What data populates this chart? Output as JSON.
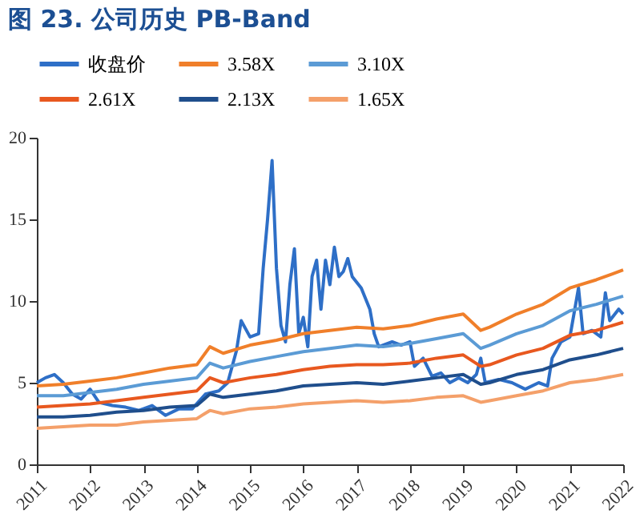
{
  "chart_data": {
    "type": "line",
    "title": "图 23. 公司历史 PB-Band",
    "xlim": [
      "2011",
      "2022"
    ],
    "xticks": [
      "2011",
      "2012",
      "2013",
      "2014",
      "2015",
      "2016",
      "2017",
      "2018",
      "2019",
      "2020",
      "2021",
      "2022"
    ],
    "ylim": [
      0,
      20
    ],
    "yticks": [
      0,
      5,
      10,
      15,
      20
    ],
    "grid": false,
    "legend": "top",
    "marker": "none",
    "line_style": "solid",
    "series": [
      {
        "name": "收盘价",
        "color": "#2e6fc7",
        "x": [
          "2011-01",
          "2011-03",
          "2011-05",
          "2011-07",
          "2011-09",
          "2011-11",
          "2012-01",
          "2012-03",
          "2012-06",
          "2012-09",
          "2012-12",
          "2013-03",
          "2013-06",
          "2013-09",
          "2013-12",
          "2014-03",
          "2014-06",
          "2014-08",
          "2014-10",
          "2014-11",
          "2015-01",
          "2015-03",
          "2015-04",
          "2015-05",
          "2015-06",
          "2015-07",
          "2015-08",
          "2015-09",
          "2015-10",
          "2015-11",
          "2015-12",
          "2016-01",
          "2016-02",
          "2016-03",
          "2016-04",
          "2016-05",
          "2016-06",
          "2016-07",
          "2016-08",
          "2016-09",
          "2016-10",
          "2016-11",
          "2016-12",
          "2017-02",
          "2017-04",
          "2017-05",
          "2017-06",
          "2017-09",
          "2017-11",
          "2018-01",
          "2018-02",
          "2018-04",
          "2018-06",
          "2018-08",
          "2018-10",
          "2018-12",
          "2019-02",
          "2019-04",
          "2019-05",
          "2019-06",
          "2019-09",
          "2019-12",
          "2020-03",
          "2020-06",
          "2020-08",
          "2020-09",
          "2020-11",
          "2021-01",
          "2021-03",
          "2021-04",
          "2021-06",
          "2021-08",
          "2021-09",
          "2021-10",
          "2021-12",
          "2022-01"
        ],
        "values": [
          5.0,
          5.3,
          5.5,
          5.0,
          4.3,
          4.0,
          4.6,
          3.8,
          3.6,
          3.5,
          3.3,
          3.6,
          3.0,
          3.4,
          3.4,
          4.3,
          4.5,
          5.0,
          7.0,
          8.8,
          7.8,
          8.0,
          12,
          15,
          18.6,
          12,
          8.5,
          7.5,
          11,
          13.2,
          8,
          9,
          7.2,
          11.5,
          12.5,
          9.5,
          12.5,
          11,
          13.3,
          11.5,
          11.8,
          12.6,
          11.5,
          10.8,
          9.5,
          8.0,
          7.2,
          7.5,
          7.3,
          7.5,
          6.0,
          6.5,
          5.4,
          5.6,
          5.0,
          5.3,
          5.0,
          5.5,
          6.5,
          5.0,
          5.2,
          5.0,
          4.6,
          5.0,
          4.8,
          6.5,
          7.5,
          7.8,
          10.8,
          8.0,
          8.2,
          7.8,
          10.5,
          8.8,
          9.5,
          9.2
        ]
      },
      {
        "name": "3.58X",
        "color": "#f07f2a",
        "x": [
          "2011-01",
          "2011-07",
          "2012-01",
          "2012-07",
          "2013-01",
          "2013-07",
          "2014-01",
          "2014-04",
          "2014-07",
          "2015-01",
          "2015-07",
          "2016-01",
          "2016-07",
          "2017-01",
          "2017-07",
          "2018-01",
          "2018-07",
          "2019-01",
          "2019-05",
          "2019-07",
          "2020-01",
          "2020-07",
          "2021-01",
          "2021-07",
          "2022-01"
        ],
        "values": [
          4.8,
          4.9,
          5.1,
          5.3,
          5.6,
          5.9,
          6.1,
          7.2,
          6.8,
          7.3,
          7.6,
          8.0,
          8.2,
          8.4,
          8.3,
          8.5,
          8.9,
          9.2,
          8.2,
          8.4,
          9.2,
          9.8,
          10.8,
          11.3,
          11.9
        ]
      },
      {
        "name": "3.10X",
        "color": "#5b9bd5",
        "x": [
          "2011-01",
          "2011-07",
          "2012-01",
          "2012-07",
          "2013-01",
          "2013-07",
          "2014-01",
          "2014-04",
          "2014-07",
          "2015-01",
          "2015-07",
          "2016-01",
          "2016-07",
          "2017-01",
          "2017-07",
          "2018-01",
          "2018-07",
          "2019-01",
          "2019-05",
          "2019-07",
          "2020-01",
          "2020-07",
          "2021-01",
          "2021-07",
          "2022-01"
        ],
        "values": [
          4.2,
          4.2,
          4.4,
          4.6,
          4.9,
          5.1,
          5.3,
          6.2,
          5.9,
          6.3,
          6.6,
          6.9,
          7.1,
          7.3,
          7.2,
          7.4,
          7.7,
          8.0,
          7.1,
          7.3,
          8.0,
          8.5,
          9.4,
          9.8,
          10.3
        ]
      },
      {
        "name": "2.61X",
        "color": "#e8581f",
        "x": [
          "2011-01",
          "2011-07",
          "2012-01",
          "2012-07",
          "2013-01",
          "2013-07",
          "2014-01",
          "2014-04",
          "2014-07",
          "2015-01",
          "2015-07",
          "2016-01",
          "2016-07",
          "2017-01",
          "2017-07",
          "2018-01",
          "2018-07",
          "2019-01",
          "2019-05",
          "2019-07",
          "2020-01",
          "2020-07",
          "2021-01",
          "2021-07",
          "2022-01"
        ],
        "values": [
          3.5,
          3.6,
          3.7,
          3.9,
          4.1,
          4.3,
          4.5,
          5.3,
          5.0,
          5.3,
          5.5,
          5.8,
          6.0,
          6.1,
          6.1,
          6.2,
          6.5,
          6.7,
          6.0,
          6.1,
          6.7,
          7.1,
          7.9,
          8.2,
          8.7
        ]
      },
      {
        "name": "2.13X",
        "color": "#1f4e8c",
        "x": [
          "2011-01",
          "2011-07",
          "2012-01",
          "2012-07",
          "2013-01",
          "2013-07",
          "2014-01",
          "2014-04",
          "2014-07",
          "2015-01",
          "2015-07",
          "2016-01",
          "2016-07",
          "2017-01",
          "2017-07",
          "2018-01",
          "2018-07",
          "2019-01",
          "2019-05",
          "2019-07",
          "2020-01",
          "2020-07",
          "2021-01",
          "2021-07",
          "2022-01"
        ],
        "values": [
          2.9,
          2.9,
          3.0,
          3.2,
          3.3,
          3.5,
          3.6,
          4.3,
          4.1,
          4.3,
          4.5,
          4.8,
          4.9,
          5.0,
          4.9,
          5.1,
          5.3,
          5.5,
          4.9,
          5.0,
          5.5,
          5.8,
          6.4,
          6.7,
          7.1
        ]
      },
      {
        "name": "1.65X",
        "color": "#f4a06a",
        "x": [
          "2011-01",
          "2011-07",
          "2012-01",
          "2012-07",
          "2013-01",
          "2013-07",
          "2014-01",
          "2014-04",
          "2014-07",
          "2015-01",
          "2015-07",
          "2016-01",
          "2016-07",
          "2017-01",
          "2017-07",
          "2018-01",
          "2018-07",
          "2019-01",
          "2019-05",
          "2019-07",
          "2020-01",
          "2020-07",
          "2021-01",
          "2021-07",
          "2022-01"
        ],
        "values": [
          2.2,
          2.3,
          2.4,
          2.4,
          2.6,
          2.7,
          2.8,
          3.3,
          3.1,
          3.4,
          3.5,
          3.7,
          3.8,
          3.9,
          3.8,
          3.9,
          4.1,
          4.2,
          3.8,
          3.9,
          4.2,
          4.5,
          5.0,
          5.2,
          5.5
        ]
      }
    ]
  }
}
